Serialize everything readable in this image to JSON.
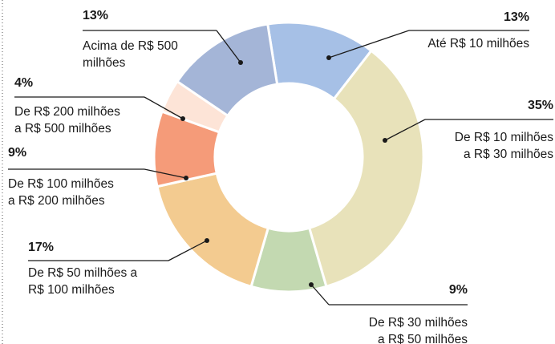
{
  "chart_data": {
    "type": "donut",
    "categories": [
      [
        "Até R$ 10 milhões"
      ],
      [
        "De R$ 10 milhões",
        "a R$ 30 milhões"
      ],
      [
        "De R$ 30 milhões",
        "a R$ 50 milhões"
      ],
      [
        "De R$ 50 milhões a",
        "R$ 100 milhões"
      ],
      [
        "De R$ 100 milhões",
        "a R$ 200 milhões"
      ],
      [
        "De R$ 200 milhões",
        "a R$ 500 milhões"
      ],
      [
        "Acima de R$ 500",
        "milhões"
      ]
    ],
    "values": [
      13,
      35,
      9,
      17,
      9,
      4,
      13
    ],
    "value_labels": [
      "13%",
      "35%",
      "9%",
      "17%",
      "9%",
      "4%",
      "13%"
    ],
    "colors": [
      "#a6c0e6",
      "#e8e2ba",
      "#c3d9b1",
      "#f3cb90",
      "#f59b79",
      "#fde4d7",
      "#a4b5d7"
    ]
  }
}
